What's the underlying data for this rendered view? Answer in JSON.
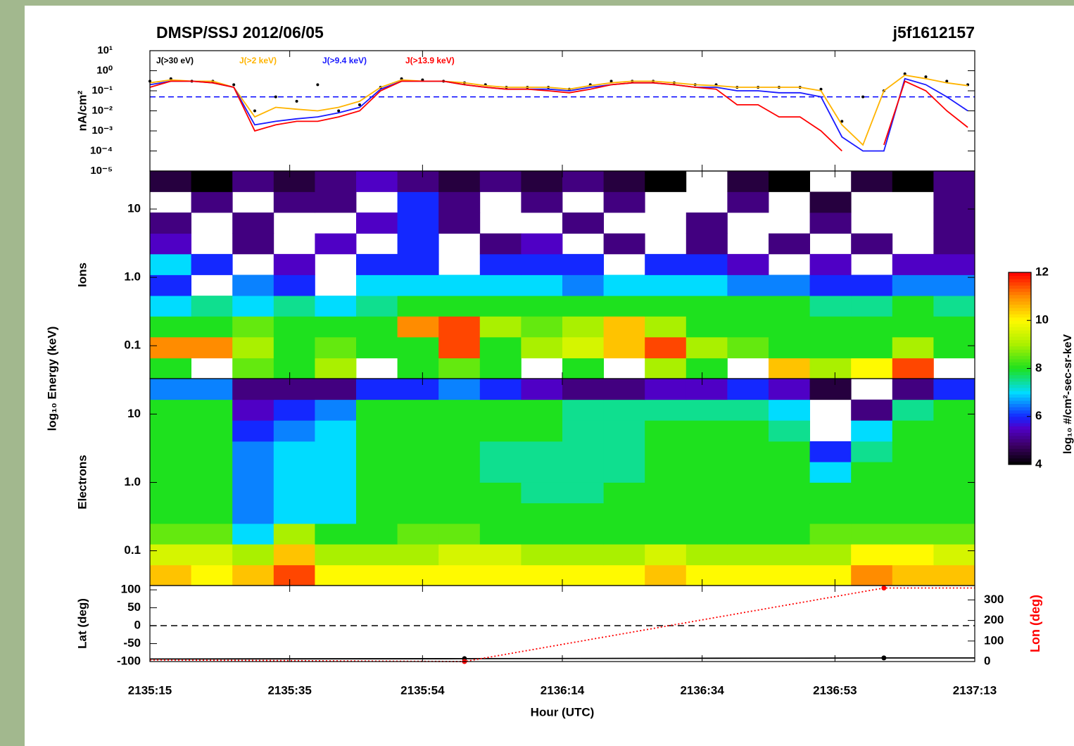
{
  "chart_data": [
    {
      "type": "line",
      "title": "DMSP/SSJ 2012/06/05",
      "file_id": "j5f1612157",
      "ylabel": "nA/cm²",
      "ylog": true,
      "ylim": [
        1e-05,
        10
      ],
      "yticks": [
        {
          "value": 10,
          "label": "10¹"
        },
        {
          "value": 1,
          "label": "10⁰"
        },
        {
          "value": 0.1,
          "label": "10⁻¹"
        },
        {
          "value": 0.01,
          "label": "10⁻²"
        },
        {
          "value": 0.001,
          "label": "10⁻³"
        },
        {
          "value": 0.0001,
          "label": "10⁻⁴"
        },
        {
          "value": 1e-05,
          "label": "10⁻⁵"
        }
      ],
      "xlim": [
        77715,
        77833
      ],
      "x": [
        77715,
        77718,
        77721,
        77724,
        77727,
        77730,
        77733,
        77736,
        77739,
        77742,
        77745,
        77748,
        77751,
        77754,
        77757,
        77760,
        77763,
        77766,
        77769,
        77772,
        77775,
        77778,
        77781,
        77784,
        77787,
        77790,
        77793,
        77796,
        77799,
        77802,
        77805,
        77808,
        77811,
        77814,
        77817,
        77820,
        77823,
        77826,
        77829,
        77832
      ],
      "reference_line": {
        "value": 0.05,
        "color": "#0000ff"
      },
      "series": [
        {
          "name": "J(>30 eV)",
          "color": "#000000",
          "style": "dots",
          "values": [
            0.3,
            0.4,
            0.3,
            0.3,
            0.2,
            0.01,
            0.05,
            0.03,
            0.2,
            0.01,
            0.02,
            0.15,
            0.4,
            0.35,
            0.3,
            0.25,
            0.2,
            0.15,
            0.15,
            0.15,
            0.12,
            0.2,
            0.3,
            0.3,
            0.3,
            0.25,
            0.2,
            0.2,
            0.15,
            0.15,
            0.15,
            0.15,
            0.12,
            0.003,
            0.05,
            0.1,
            0.7,
            0.5,
            0.3,
            0.2
          ]
        },
        {
          "name": "J(>2 keV)",
          "color": "#ffb400",
          "values": [
            0.25,
            0.35,
            0.3,
            0.3,
            0.15,
            0.005,
            0.015,
            0.012,
            0.01,
            0.015,
            0.03,
            0.15,
            0.35,
            0.3,
            0.3,
            0.25,
            0.18,
            0.15,
            0.15,
            0.15,
            0.12,
            0.18,
            0.25,
            0.3,
            0.3,
            0.25,
            0.2,
            0.18,
            0.15,
            0.15,
            0.15,
            0.15,
            0.1,
            0.002,
            0.0002,
            0.1,
            0.6,
            0.4,
            0.25,
            0.18
          ]
        },
        {
          "name": "J(>9.4 keV)",
          "color": "#1a1aff",
          "values": [
            0.2,
            0.3,
            0.3,
            0.25,
            0.15,
            0.002,
            0.003,
            0.004,
            0.005,
            0.008,
            0.015,
            0.12,
            0.3,
            0.3,
            0.3,
            0.2,
            0.15,
            0.12,
            0.12,
            0.12,
            0.1,
            0.15,
            0.2,
            0.25,
            0.25,
            0.2,
            0.15,
            0.15,
            0.1,
            0.1,
            0.08,
            0.08,
            0.05,
            0.0005,
            0.0001,
            0.0001,
            0.4,
            0.2,
            0.05,
            0.01
          ]
        },
        {
          "name": "J(>13.9 keV)",
          "color": "#ff0000",
          "values": [
            0.15,
            0.3,
            0.3,
            0.25,
            0.15,
            0.001,
            0.002,
            0.003,
            0.003,
            0.005,
            0.01,
            0.1,
            0.3,
            0.3,
            0.3,
            0.2,
            0.15,
            0.12,
            0.12,
            0.1,
            0.08,
            0.12,
            0.2,
            0.25,
            0.25,
            0.2,
            0.15,
            0.12,
            0.02,
            0.02,
            0.005,
            0.005,
            0.001,
            0.0001,
            null,
            0.0002,
            0.3,
            0.1,
            0.01,
            0.0015
          ]
        }
      ]
    },
    {
      "type": "heatmap",
      "ylabel": "Ions",
      "energy_label": "log₁₀ Energy (keV)",
      "ylog": true,
      "ylim": [
        0.033,
        36
      ],
      "yticks": [
        10,
        {
          "value": 1,
          "label": "1.0"
        },
        0.1
      ],
      "xlim": [
        77715,
        77833
      ],
      "x_bins": [
        77715,
        77720.9,
        77726.8,
        77732.7,
        77738.6,
        77744.5,
        77750.4,
        77756.3,
        77762.2,
        77768.1,
        77774,
        77779.9,
        77785.8,
        77791.7,
        77797.6,
        77803.5,
        77809.4,
        77815.3,
        77821.2,
        77827.1,
        77833
      ],
      "y_bins": [
        0.033,
        0.066,
        0.134,
        0.27,
        0.54,
        1.09,
        2.2,
        4.4,
        8.9,
        17.9,
        36
      ],
      "clim": [
        4,
        12
      ],
      "cticks": [
        4,
        6,
        8,
        10,
        12
      ],
      "colorbar_label": "log₁₀ #/cm²-sec-sr-keV",
      "z": [
        [
          8,
          null,
          8.5,
          8,
          9,
          null,
          8,
          8.5,
          8,
          null,
          8,
          null,
          9,
          8,
          null,
          10.5,
          9,
          10,
          11.5,
          null
        ],
        [
          11,
          11,
          9,
          8,
          8.5,
          8,
          8,
          11.5,
          8,
          9,
          9.5,
          10.5,
          11.5,
          9,
          8.5,
          8,
          8,
          8,
          9,
          8
        ],
        [
          8,
          8,
          8.5,
          8,
          8,
          8,
          11,
          11.5,
          9,
          8.5,
          9,
          10.5,
          9,
          8,
          8,
          8,
          8,
          8,
          8,
          8
        ],
        [
          7,
          7.5,
          7,
          7.5,
          7,
          7.5,
          8,
          8,
          8,
          8,
          8,
          8,
          8,
          8,
          8,
          8,
          7.5,
          7.5,
          8,
          7.5
        ],
        [
          6,
          null,
          6.5,
          6,
          null,
          7,
          7,
          7,
          7,
          7,
          6.5,
          7,
          7,
          7,
          6.5,
          6.5,
          6,
          6,
          6.5,
          6.5
        ],
        [
          7,
          6,
          null,
          5.5,
          null,
          6,
          6,
          null,
          6,
          6,
          6,
          null,
          6,
          6,
          5.5,
          null,
          5.5,
          null,
          5.5,
          5.5
        ],
        [
          5.5,
          null,
          5,
          null,
          5.5,
          null,
          6,
          null,
          5,
          5.5,
          null,
          5,
          null,
          5,
          null,
          5,
          null,
          5,
          null,
          5
        ],
        [
          5,
          null,
          5,
          null,
          null,
          5.5,
          6,
          5,
          null,
          null,
          5,
          null,
          null,
          5,
          null,
          null,
          5,
          null,
          null,
          5
        ],
        [
          null,
          5,
          null,
          5,
          5,
          null,
          6,
          5,
          null,
          5,
          null,
          5,
          null,
          null,
          5,
          null,
          4.5,
          null,
          null,
          5
        ],
        [
          4.5,
          4,
          5,
          4.5,
          5,
          5.5,
          5,
          4.5,
          5,
          4.5,
          5,
          4.5,
          4,
          null,
          4.5,
          4,
          null,
          4.5,
          4,
          5
        ]
      ]
    },
    {
      "type": "heatmap",
      "ylabel": "Electrons",
      "ylog": true,
      "ylim": [
        0.031,
        33
      ],
      "yticks": [
        10,
        {
          "value": 1,
          "label": "1.0"
        },
        0.1
      ],
      "xlim": [
        77715,
        77833
      ],
      "x_bins": [
        77715,
        77720.9,
        77726.8,
        77732.7,
        77738.6,
        77744.5,
        77750.4,
        77756.3,
        77762.2,
        77768.1,
        77774,
        77779.9,
        77785.8,
        77791.7,
        77797.6,
        77803.5,
        77809.4,
        77815.3,
        77821.2,
        77827.1,
        77833
      ],
      "y_bins": [
        0.031,
        0.062,
        0.125,
        0.25,
        0.5,
        1,
        2,
        4,
        8.1,
        16.3,
        33
      ],
      "clim": [
        4,
        12
      ],
      "z": [
        [
          10.5,
          10,
          10.5,
          11.5,
          10,
          10,
          10,
          10,
          10,
          10,
          10,
          10,
          10.5,
          10,
          10,
          10,
          10,
          11,
          10.5,
          10.5
        ],
        [
          9.5,
          9.5,
          9,
          10.5,
          9,
          9,
          9,
          9.5,
          9.5,
          9,
          9,
          9,
          9.5,
          9,
          9,
          9,
          9,
          10,
          10,
          9.5
        ],
        [
          8.5,
          8.5,
          7,
          9,
          8,
          8,
          8.5,
          8.5,
          8,
          8,
          8,
          8,
          8,
          8,
          8,
          8,
          8.5,
          8.5,
          8.5,
          8.5
        ],
        [
          8,
          8,
          6.5,
          7,
          7,
          8,
          8,
          8,
          8,
          8,
          8,
          8,
          8,
          8,
          8,
          8,
          8,
          8,
          8,
          8
        ],
        [
          8,
          8,
          6.5,
          7,
          7,
          8,
          8,
          8,
          8,
          7.5,
          7.5,
          8,
          8,
          8,
          8,
          8,
          8,
          8,
          8,
          8
        ],
        [
          8,
          8,
          6.5,
          7,
          7,
          8,
          8,
          8,
          7.5,
          7.5,
          7.5,
          7.5,
          8,
          8,
          8,
          8,
          7,
          8,
          8,
          8
        ],
        [
          8,
          8,
          6.5,
          7,
          7,
          8,
          8,
          8,
          7.5,
          7.5,
          7.5,
          7.5,
          8,
          8,
          8,
          8,
          6,
          7.5,
          8,
          8
        ],
        [
          8,
          8,
          6,
          6.5,
          7,
          8,
          8,
          8,
          8,
          8,
          7.5,
          7.5,
          8,
          8,
          8,
          7.5,
          null,
          7,
          8,
          8
        ],
        [
          8,
          8,
          5.5,
          6,
          6.5,
          8,
          8,
          8,
          8,
          8,
          7.5,
          7.5,
          7.5,
          7.5,
          7.5,
          7,
          null,
          5,
          7.5,
          8
        ],
        [
          6.5,
          6.5,
          5,
          5,
          5,
          6,
          6,
          6.5,
          6,
          5.5,
          5,
          5,
          5.5,
          5.5,
          6,
          5.5,
          4.5,
          null,
          5,
          6
        ]
      ]
    },
    {
      "type": "line",
      "ylabel": "Lat (deg)",
      "ylim": [
        -100,
        112
      ],
      "yticks": [
        100,
        50,
        0,
        -50,
        -100
      ],
      "zero_line": true,
      "y2label": "Lon (deg)",
      "y2color": "#ff0000",
      "y2lim": [
        0,
        370
      ],
      "y2ticks": [
        0,
        100,
        200,
        300
      ],
      "xlim": [
        77715,
        77833
      ],
      "xticks": [
        {
          "value": 77715,
          "label": "2135:15"
        },
        {
          "value": 77735,
          "label": "2135:35"
        },
        {
          "value": 77754,
          "label": "2135:54"
        },
        {
          "value": 77774,
          "label": "2136:14"
        },
        {
          "value": 77794,
          "label": "2136:34"
        },
        {
          "value": 77813,
          "label": "2136:53"
        },
        {
          "value": 77833,
          "label": "2137:13"
        }
      ],
      "xlabel": "Hour (UTC)",
      "x": [
        77715,
        77760,
        77820,
        77833
      ],
      "series": [
        {
          "color": "#000000",
          "values": [
            -93,
            -92,
            -90,
            -90
          ]
        },
        {
          "color": "#ff0000",
          "axis": "y2",
          "style": "dotted",
          "values": [
            8,
            0,
            358,
            358
          ]
        }
      ]
    }
  ]
}
